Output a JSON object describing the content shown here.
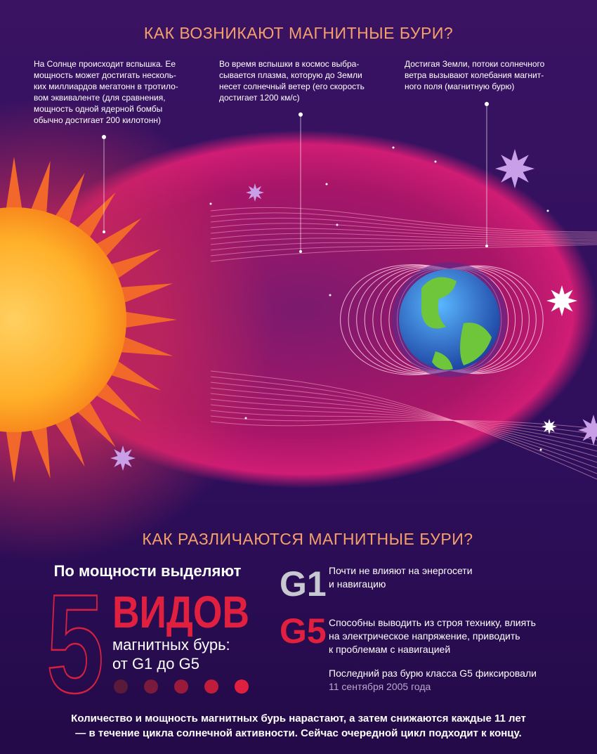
{
  "section1": {
    "title": "КАК ВОЗНИКАЮТ МАГНИТНЫЕ БУРИ?",
    "steps": [
      {
        "lines": [
          "На Солнце происходит вспышка. Ее",
          "мощность может достигать несколь-",
          "ких миллиардов мегатонн в тротило-",
          "вом эквиваленте (для сравнения,",
          "мощность одной ядерной бомбы",
          "обычно достигает 200 килотонн)"
        ]
      },
      {
        "lines": [
          "Во время вспышки в космос выбра-",
          "сывается плазма, которую до Земли",
          "несет солнечный ветер (его скорость",
          "достигает 1200 км/с)"
        ]
      },
      {
        "lines": [
          "Достигая Земли, потоки солнечного",
          "ветра вызывают колебания магнит-",
          "ного поля (магнитную бурю)"
        ]
      }
    ]
  },
  "section2": {
    "title": "КАК РАЗЛИЧАЮТСЯ МАГНИТНЫЕ БУРИ?",
    "intro": "По мощности выделяют",
    "number": "5",
    "kinds": "ВИДОВ",
    "subtitle_lines": [
      "магнитных бурь:",
      "от G1 до G5"
    ],
    "classes": [
      {
        "label": "G1",
        "lines": [
          "Почти не влияют на энергосети",
          "и навигацию"
        ]
      },
      {
        "label": "G5",
        "lines": [
          "Способны выводить из строя технику, влиять",
          "на электрическое напряжение, приводить",
          "к проблемам с навигацией"
        ]
      }
    ],
    "note": "Последний раз бурю класса G5 фиксировали",
    "note_date": "11 сентября 2005 года"
  },
  "footer": {
    "lines": [
      "Количество и мощность магнитных бурь нарастают, а затем снижаются каждые 11 лет",
      "— в течение цикла солнечной активности. Сейчас очередной цикл подходит к концу."
    ]
  }
}
